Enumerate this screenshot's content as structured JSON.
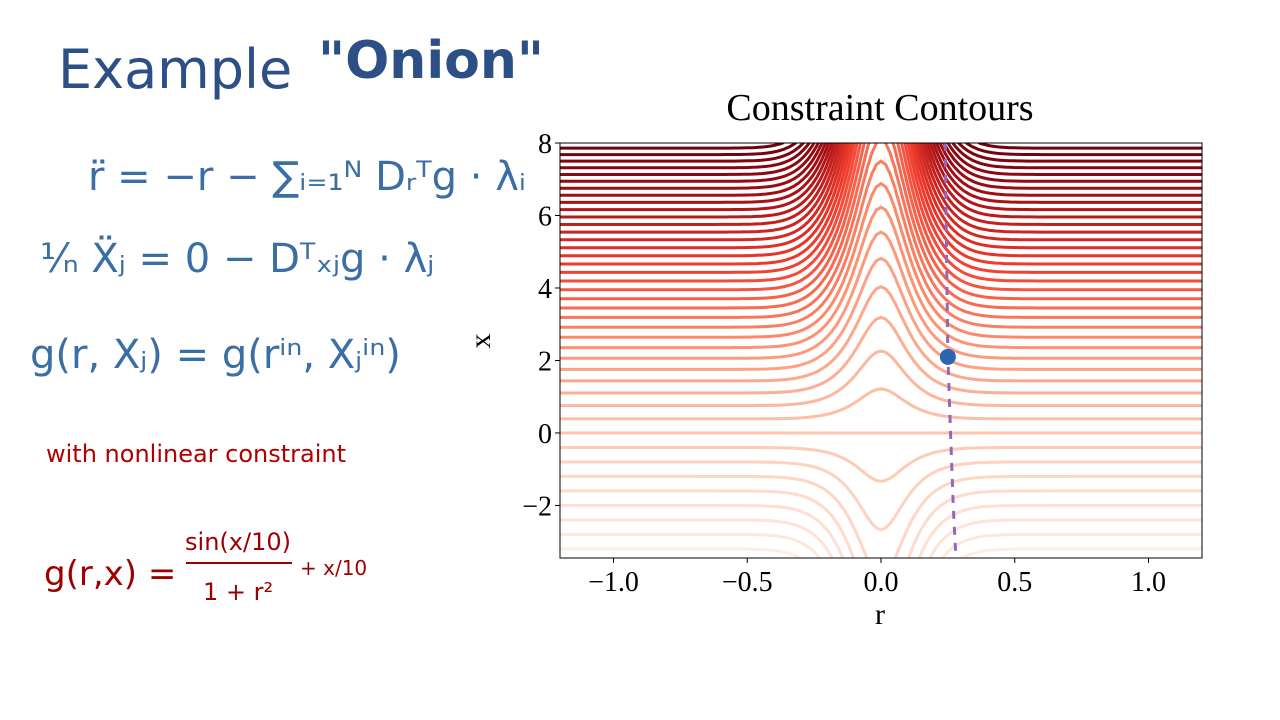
{
  "notes": {
    "title": "Example",
    "title_quoted": "\"Onion\"",
    "equation_r": "r̈ = −r  − ∑ᵢ₌₁ᴺ Dᵣᵀg · λᵢ",
    "equation_x": "¹⁄ₙ Ẍⱼ = 0  −  Dᵀₓⱼg · λⱼ",
    "equation_g": "g(r, Xⱼ) = g(rⁱⁿ, Xⱼⁱⁿ)",
    "constraint_note": "with nonlinear constraint",
    "constraint_formula": {
      "lhs": "g(r,x) =",
      "numerator": "sin(x/10)",
      "denominator": "1 + r²",
      "rhs": "+ x/10"
    }
  },
  "chart_data": {
    "type": "contour",
    "title": "Constraint Contours",
    "x_label": "r",
    "y_label": "x",
    "xlim": [
      -1.2,
      1.2
    ],
    "ylim": [
      -3.45,
      8
    ],
    "xticks": [
      {
        "value": -1,
        "label": "−1.0"
      },
      {
        "value": -0.5,
        "label": "−0.5"
      },
      {
        "value": 0,
        "label": "0.0"
      },
      {
        "value": 0.5,
        "label": "0.5"
      },
      {
        "value": 1,
        "label": "1.0"
      }
    ],
    "yticks": [
      {
        "value": -2,
        "label": "−2"
      },
      0,
      2,
      4,
      6,
      8
    ],
    "levels": [
      -3.2,
      -2.8,
      -2.4,
      -2,
      -1.6,
      -1.2,
      -0.8,
      -0.4,
      0,
      0.4,
      0.8,
      1.2,
      1.6,
      2,
      2.4,
      2.8,
      3.2,
      3.6,
      4,
      4.4,
      4.8,
      5.2,
      5.6,
      6,
      6.4,
      6.8,
      7.2,
      7.6,
      8,
      8.4,
      8.8,
      9.2,
      9.6,
      10,
      10.4,
      10.8,
      11.2,
      11.6,
      12,
      12.4,
      12.8,
      13.2
    ],
    "colormap": [
      "#fff5f0",
      "#fdd0bc",
      "#fc9272",
      "#ef3b2c",
      "#a50f15",
      "#67000d"
    ],
    "trajectory": {
      "color": "#9467bd",
      "r": [
        0.24,
        0.245,
        0.25,
        0.26,
        0.27,
        0.28
      ],
      "x": [
        8,
        5,
        2.1,
        0,
        -2,
        -3.45
      ]
    },
    "point": {
      "color": "#2c66b0",
      "r": 0.25,
      "x": 2.1
    }
  }
}
